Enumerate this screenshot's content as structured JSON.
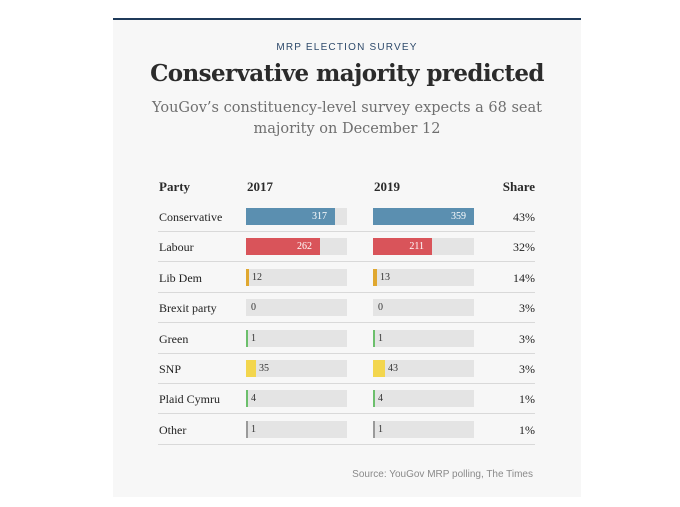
{
  "kicker": "MRP ELECTION SURVEY",
  "title": "Conservative majority predicted",
  "subtitle": "YouGov’s constituency-level survey expects a 68 seat majority on December 12",
  "source": "Source: YouGov MRP polling, The Times",
  "headers": {
    "party": "Party",
    "y2017": "2017",
    "y2019": "2019",
    "share": "Share"
  },
  "chart_data": {
    "type": "bar",
    "categories": [
      "Conservative",
      "Labour",
      "Lib Dem",
      "Brexit party",
      "Green",
      "SNP",
      "Plaid Cymru",
      "Other"
    ],
    "series": [
      {
        "name": "2017",
        "values": [
          317,
          262,
          12,
          0,
          1,
          35,
          4,
          1
        ]
      },
      {
        "name": "2019",
        "values": [
          359,
          211,
          13,
          0,
          1,
          43,
          4,
          1
        ]
      }
    ],
    "share": [
      "43%",
      "32%",
      "14%",
      "3%",
      "3%",
      "3%",
      "1%",
      "1%"
    ],
    "colors": [
      "#5b8fb0",
      "#d9545a",
      "#e0a830",
      "#9a9a9a",
      "#6cbf6c",
      "#f3d64e",
      "#6cbf6c",
      "#9a9a9a"
    ],
    "xlim": [
      0,
      359
    ]
  }
}
